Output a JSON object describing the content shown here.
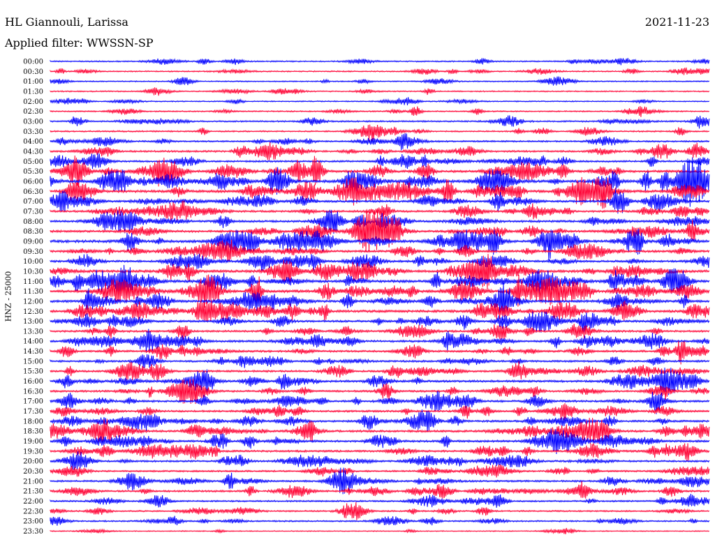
{
  "header": {
    "station": "HL Giannouli, Larissa",
    "date": "2021-11-23",
    "filter": "Applied filter: WWSSN-SP",
    "channel_label": "HNZ - 25000"
  },
  "colors": {
    "even_row": "#0000ff",
    "odd_row": "#ff0033",
    "background": "#ffffff",
    "text": "#000000"
  },
  "chart_data": {
    "type": "line",
    "title": "HL Giannouli, Larissa",
    "subtitle": "Applied filter: WWSSN-SP",
    "ylabel": "HNZ - 25000",
    "xlabel": "",
    "grid": false,
    "rows": [
      "00:00",
      "00:30",
      "01:00",
      "01:30",
      "02:00",
      "02:30",
      "03:00",
      "03:30",
      "04:00",
      "04:30",
      "05:00",
      "05:30",
      "06:00",
      "06:30",
      "07:00",
      "07:30",
      "08:00",
      "08:30",
      "09:00",
      "09:30",
      "10:00",
      "10:30",
      "11:00",
      "11:30",
      "12:00",
      "12:30",
      "13:00",
      "13:30",
      "14:00",
      "14:30",
      "15:00",
      "15:30",
      "16:00",
      "16:30",
      "17:00",
      "17:30",
      "18:00",
      "18:30",
      "19:00",
      "19:30",
      "20:00",
      "20:30",
      "21:00",
      "21:30",
      "22:00",
      "22:30",
      "23:00",
      "23:30"
    ],
    "activity_level": [
      0.2,
      0.2,
      0.15,
      0.15,
      0.15,
      0.2,
      0.3,
      0.3,
      0.35,
      0.45,
      0.45,
      0.7,
      0.9,
      0.8,
      0.6,
      0.55,
      0.6,
      0.65,
      0.85,
      0.6,
      0.55,
      0.8,
      0.85,
      0.85,
      0.7,
      0.75,
      0.6,
      0.55,
      0.6,
      0.55,
      0.5,
      0.5,
      0.6,
      0.5,
      0.55,
      0.5,
      0.55,
      0.6,
      0.6,
      0.55,
      0.45,
      0.4,
      0.45,
      0.45,
      0.35,
      0.3,
      0.3,
      0.05
    ]
  }
}
